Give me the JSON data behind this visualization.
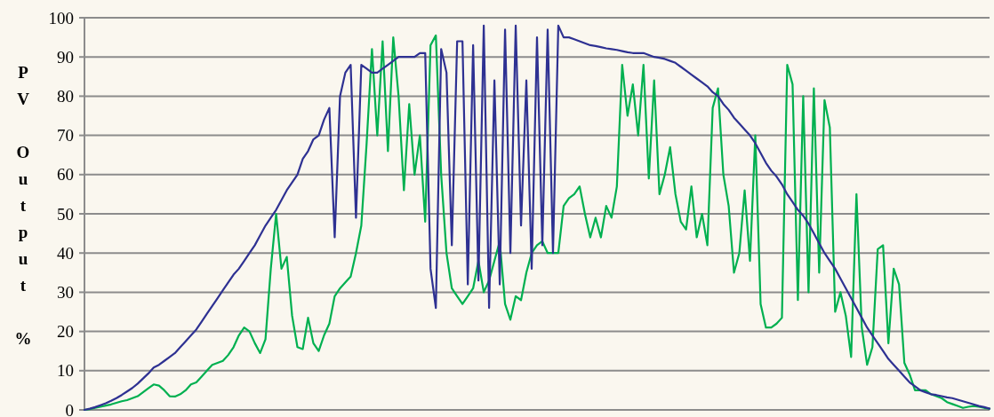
{
  "chart_data": {
    "type": "line",
    "ylabel": "PV Output %",
    "categories": [
      null,
      null,
      null,
      null,
      null,
      null,
      null,
      null,
      null,
      null,
      null,
      null,
      null,
      null,
      null,
      null,
      null,
      null,
      null,
      null,
      null,
      null,
      null,
      null,
      null,
      null,
      null,
      null,
      null,
      null,
      null,
      null,
      null,
      null,
      null,
      null,
      null,
      null,
      null,
      null,
      null,
      null,
      null,
      null,
      null,
      null,
      null,
      null,
      null,
      null,
      null,
      null,
      null,
      null,
      null,
      null,
      null,
      null,
      null,
      null,
      null,
      null,
      null,
      null,
      null,
      null,
      null,
      null,
      null,
      null,
      null,
      null,
      null,
      null,
      null,
      null,
      null,
      null,
      null,
      null,
      null,
      null,
      null,
      null,
      null,
      null,
      null,
      null,
      null,
      null,
      null,
      null,
      null,
      null,
      null,
      null,
      null,
      null,
      null,
      null,
      null,
      null,
      null,
      null,
      null,
      null,
      null,
      null,
      null,
      null,
      null,
      null,
      null,
      null,
      null,
      null,
      null,
      null,
      null,
      null,
      null,
      null,
      null,
      null,
      null,
      null,
      null,
      null,
      null,
      null,
      null,
      null,
      null,
      null,
      null,
      null,
      null,
      null,
      null,
      null,
      null,
      null,
      null,
      null,
      null,
      null,
      null,
      null,
      null,
      null,
      null,
      null,
      null,
      null,
      null,
      null,
      null,
      null,
      null,
      null,
      null,
      null,
      null,
      null,
      null,
      null,
      null,
      null,
      null,
      null,
      null
    ],
    "series": [
      {
        "color": "#00b050",
        "values": [
          0,
          0.2,
          0.5,
          0.8,
          1.1,
          1.4,
          1.8,
          2.2,
          2.5,
          3,
          3.5,
          4.5,
          5.5,
          6.5,
          6.2,
          5,
          3.5,
          3.4,
          4,
          5,
          6.5,
          7,
          8.5,
          10,
          11.5,
          12,
          12.5,
          14,
          16,
          19,
          21,
          20,
          17,
          14.5,
          18,
          36,
          50,
          36,
          39,
          24,
          16,
          15.5,
          23.5,
          17,
          15,
          19,
          22,
          29,
          31,
          32.5,
          34,
          40,
          47,
          68,
          92,
          70,
          94,
          66,
          95,
          80,
          56,
          78,
          60,
          70,
          48,
          93,
          95.5,
          60,
          40,
          31,
          29,
          27,
          29,
          31,
          38,
          30,
          33,
          38,
          43,
          27,
          23,
          29,
          28,
          35,
          40,
          42,
          43,
          40,
          40,
          40,
          52,
          54,
          55,
          57,
          50,
          44,
          49,
          44,
          52,
          49,
          57,
          88,
          75,
          83,
          70,
          88,
          59,
          84,
          55,
          60,
          67,
          55,
          48,
          46,
          57,
          44,
          50,
          42,
          77,
          82,
          60,
          52,
          35,
          40,
          56,
          38,
          70,
          27,
          21,
          21,
          22,
          23.5,
          88,
          83,
          28,
          80,
          30,
          82,
          35,
          79,
          72,
          25,
          30,
          24,
          13.5,
          55,
          21,
          11.5,
          16,
          41,
          42,
          17,
          36,
          32,
          12,
          9,
          5,
          5,
          5,
          4,
          3.5,
          3,
          2,
          1.5,
          1,
          0.5,
          0.8,
          1,
          0.8,
          0.5,
          0.3
        ]
      },
      {
        "color": "#2e3192",
        "values": [
          0,
          0.3,
          0.7,
          1.2,
          1.7,
          2.3,
          3,
          3.8,
          4.7,
          5.6,
          6.7,
          8,
          9.3,
          10.8,
          11.5,
          12.5,
          13.5,
          14.5,
          16,
          17.5,
          19,
          20.5,
          22.5,
          24.5,
          26.5,
          28.5,
          30.5,
          32.5,
          34.5,
          36,
          38,
          40,
          42,
          44.5,
          47,
          49,
          51,
          53.5,
          56,
          58,
          60,
          64,
          66,
          69,
          70,
          74,
          77,
          44,
          80,
          86,
          88,
          49,
          88,
          87,
          86,
          86,
          87,
          88,
          89,
          90,
          90,
          90,
          90,
          91,
          91,
          36,
          26,
          92,
          86,
          42,
          94,
          94,
          32,
          93,
          33,
          98,
          26,
          84,
          32,
          97,
          40,
          98,
          47,
          84,
          36,
          95,
          42,
          97,
          40,
          98,
          95,
          95,
          94.5,
          94,
          93.5,
          93,
          92.8,
          92.5,
          92.2,
          92,
          91.8,
          91.5,
          91.2,
          91,
          91,
          91,
          90.5,
          90,
          89.8,
          89.5,
          89,
          88.5,
          87.5,
          86.5,
          85.5,
          84.5,
          83.5,
          82.5,
          81,
          80,
          78,
          76.5,
          74.5,
          73,
          71.5,
          70,
          68,
          65.5,
          63,
          61,
          59.5,
          57.5,
          55,
          53,
          51,
          49.5,
          47.5,
          45,
          42.5,
          40,
          38,
          36,
          33.5,
          31,
          28.5,
          26,
          23.5,
          21,
          19,
          17,
          15,
          13,
          11.5,
          10,
          8.5,
          7,
          6,
          5,
          4.5,
          4,
          3.8,
          3.5,
          3.2,
          3,
          2.6,
          2.2,
          1.8,
          1.4,
          1,
          0.7,
          0.3
        ]
      }
    ],
    "ylim": [
      0,
      100
    ],
    "yticks": [
      0,
      10,
      20,
      30,
      40,
      50,
      60,
      70,
      80,
      90,
      100
    ],
    "grid": "y"
  }
}
